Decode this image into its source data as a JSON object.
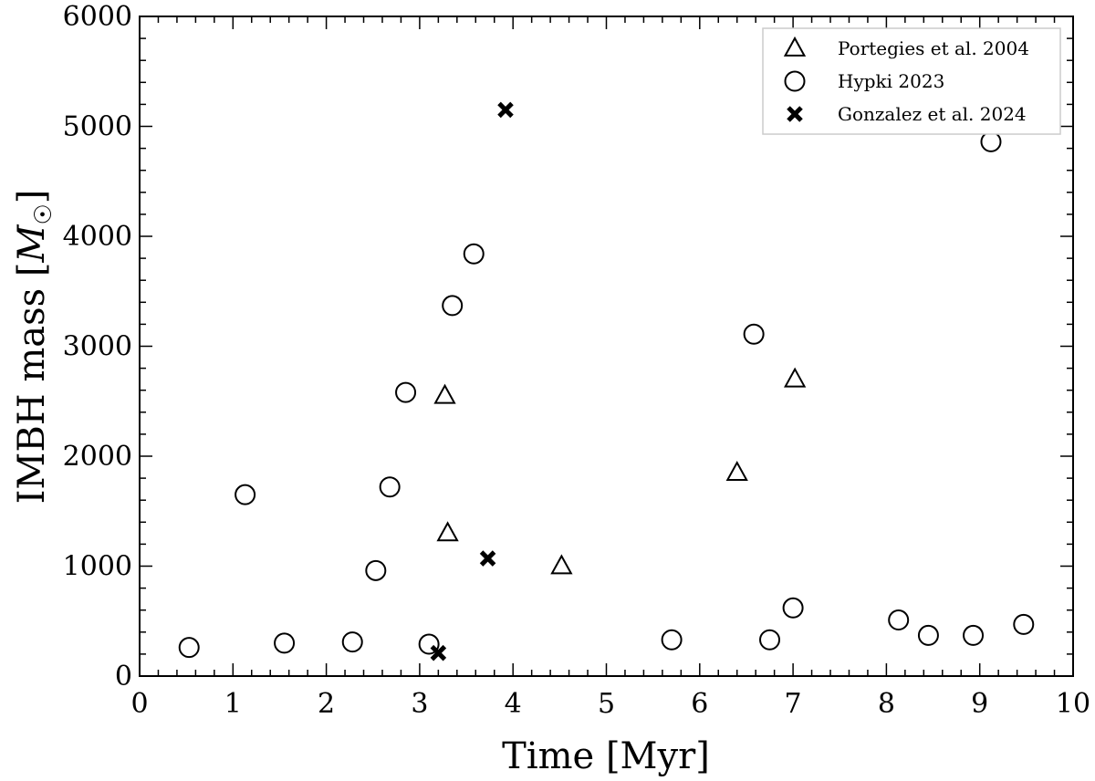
{
  "chart_data": {
    "type": "scatter",
    "xlabel": "Time [Myr]",
    "ylabel_text": "IMBH mass [",
    "ylabel_unit": "M",
    "ylabel_close": "]",
    "xlim": [
      0,
      10
    ],
    "ylim": [
      0,
      6000
    ],
    "xticks": [
      0,
      1,
      2,
      3,
      4,
      5,
      6,
      7,
      8,
      9,
      10
    ],
    "yticks": [
      0,
      1000,
      2000,
      3000,
      4000,
      5000,
      6000
    ],
    "grid": false,
    "legend_position": "top-right",
    "series": [
      {
        "name": "Portegies et al. 2004",
        "marker": "triangle",
        "x": [
          3.27,
          3.3,
          4.52,
          6.4,
          7.02
        ],
        "y": [
          2550,
          1300,
          1000,
          1850,
          2700
        ]
      },
      {
        "name": "Hypki 2023",
        "marker": "circle",
        "x": [
          0.53,
          1.13,
          1.55,
          2.28,
          2.53,
          2.68,
          2.85,
          3.1,
          3.35,
          3.58,
          5.7,
          6.58,
          6.75,
          7.0,
          8.13,
          8.45,
          8.93,
          9.12,
          9.47
        ],
        "y": [
          260,
          1650,
          300,
          310,
          960,
          1720,
          2580,
          290,
          3370,
          3840,
          330,
          3110,
          330,
          620,
          510,
          370,
          370,
          4860,
          470
        ]
      },
      {
        "name": "Gonzalez et al. 2024",
        "marker": "cross",
        "x": [
          3.2,
          3.73,
          3.92
        ],
        "y": [
          210,
          1070,
          5150
        ]
      }
    ]
  }
}
